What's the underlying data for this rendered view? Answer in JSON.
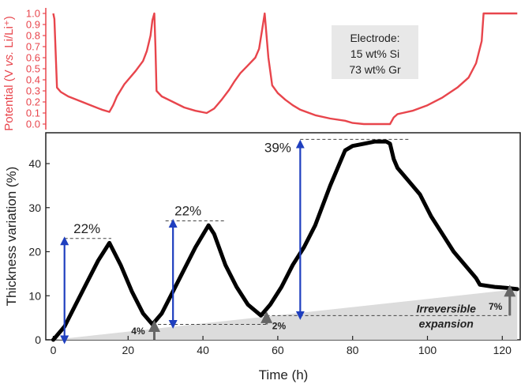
{
  "chart_data": [
    {
      "type": "line",
      "panel": "top",
      "ylabel": "Potential (V vs. Li/Li⁺)",
      "ylabel_parts": [
        "Potential (V ",
        "vs.",
        " Li/Li⁺)"
      ],
      "ylim": [
        -0.05,
        1.05
      ],
      "yticks": [
        "0.0",
        "0.1",
        "0.2",
        "0.3",
        "0.4",
        "0.5",
        "0.6",
        "0.7",
        "0.8",
        "0.9",
        "1.0"
      ],
      "color": "#e8454c",
      "legend_lines": [
        "Electrode:",
        "15 wt% Si",
        "73 wt% Gr"
      ],
      "series": [
        {
          "x": [
            0,
            0.3,
            1,
            2,
            4,
            7,
            10,
            13,
            15,
            16,
            17,
            19,
            22,
            24,
            25,
            26,
            26.5,
            27,
            27.3,
            27.6,
            29,
            32,
            35,
            38,
            41,
            43,
            45,
            47,
            48.5,
            50,
            52,
            54,
            55,
            55.8,
            56.5,
            57.5,
            58.5,
            60,
            62,
            64,
            66,
            70,
            74,
            78,
            80,
            83,
            85,
            88,
            90,
            91,
            92,
            96,
            100,
            104,
            108,
            111,
            113,
            114.5,
            115,
            120,
            124
          ],
          "y": [
            1.0,
            0.95,
            0.33,
            0.29,
            0.25,
            0.21,
            0.17,
            0.13,
            0.11,
            0.17,
            0.25,
            0.36,
            0.48,
            0.57,
            0.66,
            0.8,
            0.94,
            1.0,
            0.7,
            0.3,
            0.25,
            0.2,
            0.15,
            0.12,
            0.1,
            0.14,
            0.22,
            0.31,
            0.39,
            0.46,
            0.53,
            0.6,
            0.68,
            0.85,
            1.0,
            0.6,
            0.35,
            0.28,
            0.22,
            0.17,
            0.13,
            0.08,
            0.05,
            0.03,
            0.01,
            0.0,
            0.0,
            0.0,
            0.0,
            0.06,
            0.09,
            0.12,
            0.17,
            0.24,
            0.33,
            0.42,
            0.55,
            0.75,
            1.0,
            1.0,
            1.0
          ]
        }
      ]
    },
    {
      "type": "line",
      "panel": "bottom",
      "xlabel": "Time (h)",
      "ylabel": "Thickness variation (%)",
      "xlim": [
        -2,
        125
      ],
      "ylim": [
        0,
        47
      ],
      "xticks": [
        "0",
        "20",
        "40",
        "60",
        "80",
        "100",
        "120"
      ],
      "yticks": [
        "0",
        "10",
        "20",
        "30",
        "40"
      ],
      "series": [
        {
          "x": [
            0,
            3,
            6,
            9,
            12,
            15,
            18,
            21,
            24,
            26.5,
            29,
            32,
            35,
            38,
            41.5,
            43,
            46,
            49,
            52,
            55.5,
            58,
            61,
            64,
            67,
            70,
            74,
            78,
            80,
            83,
            86,
            89,
            90,
            91,
            92,
            95,
            98,
            101,
            104,
            107,
            110,
            113,
            114,
            118,
            121,
            124
          ],
          "y": [
            0,
            3,
            8,
            13,
            18,
            22,
            17,
            11,
            6,
            3.5,
            6,
            11,
            16,
            21,
            26,
            24,
            17,
            12,
            8,
            5.5,
            8,
            12,
            17,
            21,
            26,
            35,
            43,
            44,
            44.5,
            45,
            45,
            44.5,
            41,
            39,
            36,
            33,
            28,
            24,
            20,
            17,
            14,
            12.5,
            12,
            11.8,
            11.5
          ]
        }
      ],
      "annotations": [
        {
          "label": "22%",
          "x": 3,
          "from": 0,
          "to": 23,
          "color": "#1f3fbf"
        },
        {
          "label": "22%",
          "x": 32,
          "from": 3.5,
          "to": 27,
          "color": "#1f3fbf"
        },
        {
          "label": "39%",
          "x": 66,
          "from": 5.5,
          "to": 45,
          "color": "#1f3fbf"
        },
        {
          "label": "4%",
          "x": 27,
          "from": 0,
          "to": 3.5,
          "color": "#666666"
        },
        {
          "label": "2%",
          "x": 57,
          "from": 3.5,
          "to": 5.5,
          "color": "#666666"
        },
        {
          "label": "7%",
          "x": 122,
          "from": 5.5,
          "to": 11.5,
          "color": "#666666"
        }
      ],
      "irreversible_label": [
        "Irreversible",
        "expansion"
      ]
    }
  ]
}
